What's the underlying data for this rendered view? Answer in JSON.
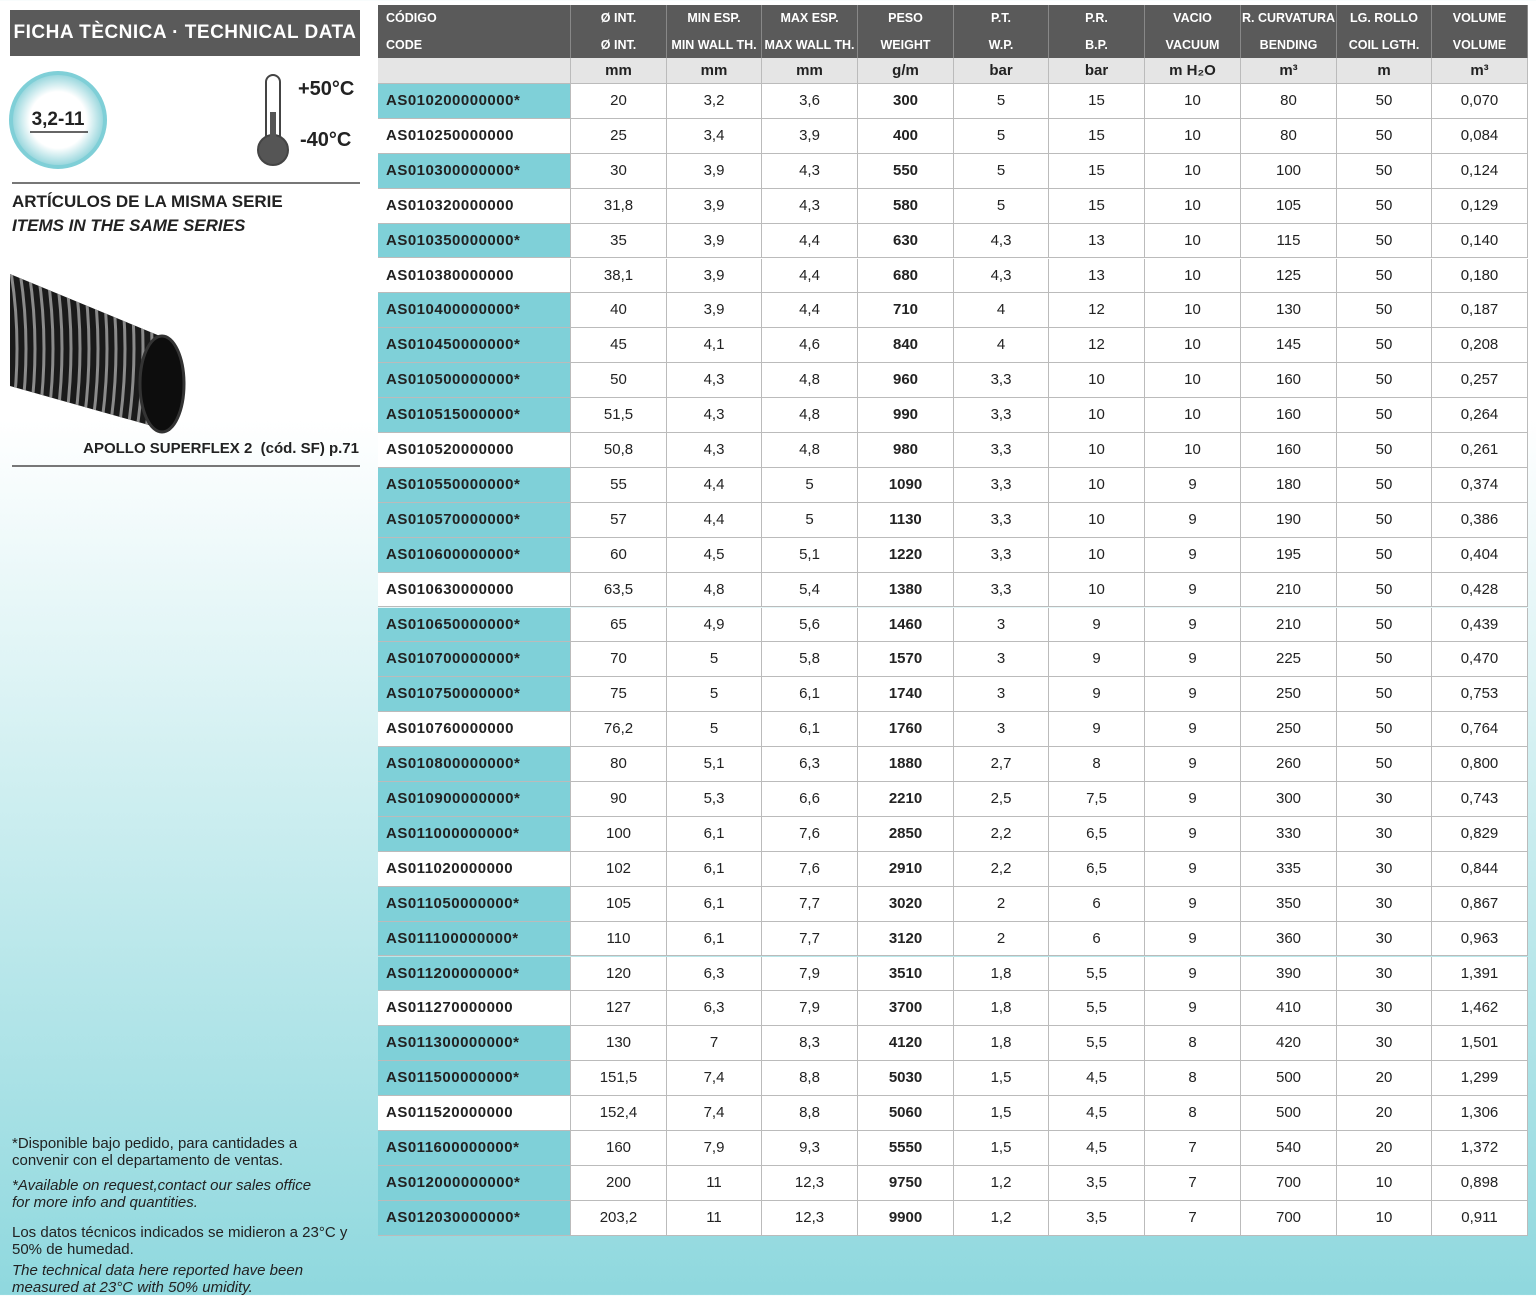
{
  "header": {
    "title": "FICHA TÈCNICA · TECHNICAL DATA",
    "badge": "3,2-11",
    "temp_max": "+50°C",
    "temp_min": "-40°C"
  },
  "series": {
    "title_es": "ARTÍCULOS DE LA MISMA SERIE",
    "title_en": "ITEMS IN THE SAME SERIES",
    "product": "APOLLO SUPERFLEX 2  (cód. SF) p.71"
  },
  "notes": {
    "availability_es": "*Disponible bajo pedido, para cantidades a convenir con el departamento de ventas.",
    "availability_en": "*Available on request,contact our sales office for more info and quantities.",
    "conditions_es": "Los datos técnicos indicados se midieron a 23°C y 50% de humedad.",
    "conditions_en": "The technical data here reported have been measured at 23°C with 50% umidity."
  },
  "table": {
    "header_es": [
      "CÓDIGO",
      "Ø INT.",
      "MIN ESP.",
      "MAX ESP.",
      "PESO",
      "P.T.",
      "P.R.",
      "VACIO",
      "R. CURVATURA",
      "LG. ROLLO",
      "VOLUME"
    ],
    "header_en": [
      "CODE",
      "Ø INT.",
      "MIN WALL TH.",
      "MAX WALL TH.",
      "WEIGHT",
      "W.P.",
      "B.P.",
      "VACUUM",
      "BENDING",
      "COIL LGTH.",
      "VOLUME"
    ],
    "units": [
      "mm",
      "mm",
      "mm",
      "g/m",
      "bar",
      "bar",
      "m H₂O",
      "m³",
      "m",
      "m³"
    ],
    "rows": [
      [
        "AS010200000000*",
        "20",
        "3,2",
        "3,6",
        "300",
        "5",
        "15",
        "10",
        "80",
        "50",
        "0,070"
      ],
      [
        "AS010250000000",
        "25",
        "3,4",
        "3,9",
        "400",
        "5",
        "15",
        "10",
        "80",
        "50",
        "0,084"
      ],
      [
        "AS010300000000*",
        "30",
        "3,9",
        "4,3",
        "550",
        "5",
        "15",
        "10",
        "100",
        "50",
        "0,124"
      ],
      [
        "AS010320000000",
        "31,8",
        "3,9",
        "4,3",
        "580",
        "5",
        "15",
        "10",
        "105",
        "50",
        "0,129"
      ],
      [
        "AS010350000000*",
        "35",
        "3,9",
        "4,4",
        "630",
        "4,3",
        "13",
        "10",
        "115",
        "50",
        "0,140"
      ],
      [
        "AS010380000000",
        "38,1",
        "3,9",
        "4,4",
        "680",
        "4,3",
        "13",
        "10",
        "125",
        "50",
        "0,180"
      ],
      [
        "AS010400000000*",
        "40",
        "3,9",
        "4,4",
        "710",
        "4",
        "12",
        "10",
        "130",
        "50",
        "0,187"
      ],
      [
        "AS010450000000*",
        "45",
        "4,1",
        "4,6",
        "840",
        "4",
        "12",
        "10",
        "145",
        "50",
        "0,208"
      ],
      [
        "AS010500000000*",
        "50",
        "4,3",
        "4,8",
        "960",
        "3,3",
        "10",
        "10",
        "160",
        "50",
        "0,257"
      ],
      [
        "AS010515000000*",
        "51,5",
        "4,3",
        "4,8",
        "990",
        "3,3",
        "10",
        "10",
        "160",
        "50",
        "0,264"
      ],
      [
        "AS010520000000",
        "50,8",
        "4,3",
        "4,8",
        "980",
        "3,3",
        "10",
        "10",
        "160",
        "50",
        "0,261"
      ],
      [
        "AS010550000000*",
        "55",
        "4,4",
        "5",
        "1090",
        "3,3",
        "10",
        "9",
        "180",
        "50",
        "0,374"
      ],
      [
        "AS010570000000*",
        "57",
        "4,4",
        "5",
        "1130",
        "3,3",
        "10",
        "9",
        "190",
        "50",
        "0,386"
      ],
      [
        "AS010600000000*",
        "60",
        "4,5",
        "5,1",
        "1220",
        "3,3",
        "10",
        "9",
        "195",
        "50",
        "0,404"
      ],
      [
        "AS010630000000",
        "63,5",
        "4,8",
        "5,4",
        "1380",
        "3,3",
        "10",
        "9",
        "210",
        "50",
        "0,428"
      ],
      [
        "AS010650000000*",
        "65",
        "4,9",
        "5,6",
        "1460",
        "3",
        "9",
        "9",
        "210",
        "50",
        "0,439"
      ],
      [
        "AS010700000000*",
        "70",
        "5",
        "5,8",
        "1570",
        "3",
        "9",
        "9",
        "225",
        "50",
        "0,470"
      ],
      [
        "AS010750000000*",
        "75",
        "5",
        "6,1",
        "1740",
        "3",
        "9",
        "9",
        "250",
        "50",
        "0,753"
      ],
      [
        "AS010760000000",
        "76,2",
        "5",
        "6,1",
        "1760",
        "3",
        "9",
        "9",
        "250",
        "50",
        "0,764"
      ],
      [
        "AS010800000000*",
        "80",
        "5,1",
        "6,3",
        "1880",
        "2,7",
        "8",
        "9",
        "260",
        "50",
        "0,800"
      ],
      [
        "AS010900000000*",
        "90",
        "5,3",
        "6,6",
        "2210",
        "2,5",
        "7,5",
        "9",
        "300",
        "30",
        "0,743"
      ],
      [
        "AS011000000000*",
        "100",
        "6,1",
        "7,6",
        "2850",
        "2,2",
        "6,5",
        "9",
        "330",
        "30",
        "0,829"
      ],
      [
        "AS011020000000",
        "102",
        "6,1",
        "7,6",
        "2910",
        "2,2",
        "6,5",
        "9",
        "335",
        "30",
        "0,844"
      ],
      [
        "AS011050000000*",
        "105",
        "6,1",
        "7,7",
        "3020",
        "2",
        "6",
        "9",
        "350",
        "30",
        "0,867"
      ],
      [
        "AS011100000000*",
        "110",
        "6,1",
        "7,7",
        "3120",
        "2",
        "6",
        "9",
        "360",
        "30",
        "0,963"
      ],
      [
        "AS011200000000*",
        "120",
        "6,3",
        "7,9",
        "3510",
        "1,8",
        "5,5",
        "9",
        "390",
        "30",
        "1,391"
      ],
      [
        "AS011270000000",
        "127",
        "6,3",
        "7,9",
        "3700",
        "1,8",
        "5,5",
        "9",
        "410",
        "30",
        "1,462"
      ],
      [
        "AS011300000000*",
        "130",
        "7",
        "8,3",
        "4120",
        "1,8",
        "5,5",
        "8",
        "420",
        "30",
        "1,501"
      ],
      [
        "AS011500000000*",
        "151,5",
        "7,4",
        "8,8",
        "5030",
        "1,5",
        "4,5",
        "8",
        "500",
        "20",
        "1,299"
      ],
      [
        "AS011520000000",
        "152,4",
        "7,4",
        "8,8",
        "5060",
        "1,5",
        "4,5",
        "8",
        "500",
        "20",
        "1,306"
      ],
      [
        "AS011600000000*",
        "160",
        "7,9",
        "9,3",
        "5550",
        "1,5",
        "4,5",
        "7",
        "540",
        "20",
        "1,372"
      ],
      [
        "AS012000000000*",
        "200",
        "11",
        "12,3",
        "9750",
        "1,2",
        "3,5",
        "7",
        "700",
        "10",
        "0,898"
      ],
      [
        "AS012030000000*",
        "203,2",
        "11",
        "12,3",
        "9900",
        "1,2",
        "3,5",
        "7",
        "700",
        "10",
        "0,911"
      ]
    ]
  }
}
